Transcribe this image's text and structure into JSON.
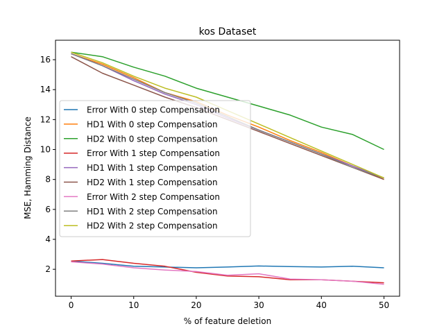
{
  "chart_data": {
    "type": "line",
    "title": "kos Dataset",
    "xlabel": "% of feature deletion",
    "ylabel": "MSE, Hamming Distance",
    "xlim": [
      -2.5,
      52.5
    ],
    "ylim": [
      0.2,
      17.3
    ],
    "xticks": [
      0,
      10,
      20,
      30,
      40,
      50
    ],
    "yticks": [
      2,
      4,
      6,
      8,
      10,
      12,
      14,
      16
    ],
    "grid": false,
    "legend_position": "center-left",
    "series": [
      {
        "name": "Error With 0 step Compensation",
        "color": "#1f77b4",
        "x": [
          0,
          5,
          10,
          15,
          20,
          25,
          30,
          35,
          40,
          45,
          50
        ],
        "y": [
          2.55,
          2.4,
          2.2,
          2.15,
          2.1,
          2.15,
          2.22,
          2.18,
          2.15,
          2.2,
          2.1
        ]
      },
      {
        "name": "HD1 With 0 step Compensation",
        "color": "#ff7f0e",
        "x": [
          0,
          5,
          10,
          15,
          20,
          25,
          30,
          35,
          40,
          45,
          50
        ],
        "y": [
          16.4,
          15.7,
          14.8,
          13.8,
          13.2,
          12.3,
          11.5,
          10.6,
          9.8,
          8.9,
          8.0
        ]
      },
      {
        "name": "HD2 With 0 step Compensation",
        "color": "#2ca02c",
        "x": [
          0,
          5,
          10,
          15,
          20,
          25,
          30,
          35,
          40,
          45,
          50
        ],
        "y": [
          16.5,
          16.2,
          15.5,
          14.9,
          14.1,
          13.5,
          12.9,
          12.3,
          11.5,
          11.0,
          10.0
        ]
      },
      {
        "name": "Error With 1 step Compensation",
        "color": "#d62728",
        "x": [
          0,
          5,
          10,
          15,
          20,
          25,
          30,
          35,
          40,
          45,
          50
        ],
        "y": [
          2.55,
          2.65,
          2.4,
          2.2,
          1.8,
          1.55,
          1.5,
          1.3,
          1.3,
          1.2,
          1.1
        ]
      },
      {
        "name": "HD1 With 1 step Compensation",
        "color": "#9467bd",
        "x": [
          0,
          5,
          10,
          15,
          20,
          25,
          30,
          35,
          40,
          45,
          50
        ],
        "y": [
          16.4,
          15.6,
          14.6,
          13.7,
          13.0,
          12.1,
          11.3,
          10.5,
          9.7,
          8.9,
          8.1
        ]
      },
      {
        "name": "HD2 With 1 step Compensation",
        "color": "#8c564b",
        "x": [
          0,
          5,
          10,
          15,
          20,
          25,
          30,
          35,
          40,
          45,
          50
        ],
        "y": [
          16.2,
          15.1,
          14.3,
          13.5,
          12.8,
          12.0,
          11.2,
          10.4,
          9.6,
          8.8,
          8.0
        ]
      },
      {
        "name": "Error With 2 step Compensation",
        "color": "#e377c2",
        "x": [
          0,
          5,
          10,
          15,
          20,
          25,
          30,
          35,
          40,
          45,
          50
        ],
        "y": [
          2.5,
          2.35,
          2.1,
          1.95,
          1.85,
          1.6,
          1.7,
          1.35,
          1.3,
          1.2,
          1.0
        ]
      },
      {
        "name": "HD1 With 2 step Compensation",
        "color": "#7f7f7f",
        "x": [
          0,
          5,
          10,
          15,
          20,
          25,
          30,
          35,
          40,
          45,
          50
        ],
        "y": [
          16.4,
          15.6,
          14.7,
          13.8,
          13.1,
          12.2,
          11.3,
          10.5,
          9.7,
          8.8,
          8.1
        ]
      },
      {
        "name": "HD2 With 2 step Compensation",
        "color": "#bcbd22",
        "x": [
          0,
          5,
          10,
          15,
          20,
          25,
          30,
          35,
          40,
          45,
          50
        ],
        "y": [
          16.5,
          15.8,
          14.9,
          14.1,
          13.5,
          12.6,
          11.7,
          10.8,
          9.9,
          9.0,
          8.1
        ]
      }
    ]
  }
}
